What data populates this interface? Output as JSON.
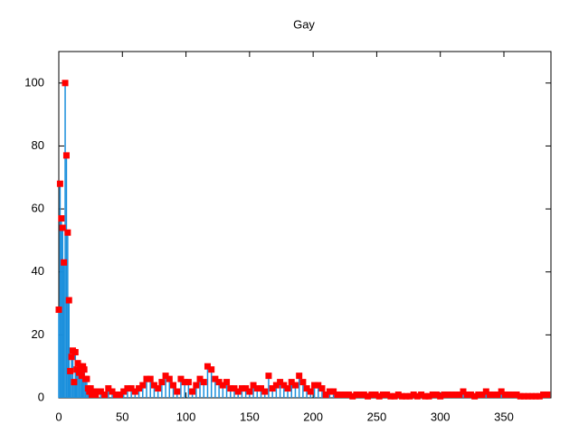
{
  "chart_data": {
    "type": "impulses-points",
    "title": "Gay",
    "x": [
      0,
      1,
      2,
      3,
      4,
      5,
      6,
      7,
      8,
      9,
      10,
      11,
      12,
      13,
      14,
      15,
      16,
      17,
      18,
      19,
      20,
      21,
      22,
      23,
      24,
      25,
      26,
      27,
      28,
      29,
      30,
      33,
      36,
      39,
      42,
      45,
      48,
      51,
      54,
      57,
      60,
      63,
      66,
      69,
      72,
      75,
      78,
      81,
      84,
      87,
      90,
      93,
      96,
      99,
      102,
      105,
      108,
      111,
      114,
      117,
      120,
      123,
      126,
      129,
      132,
      135,
      138,
      141,
      144,
      147,
      150,
      153,
      156,
      159,
      162,
      165,
      168,
      171,
      174,
      177,
      180,
      183,
      186,
      189,
      192,
      195,
      198,
      201,
      204,
      207,
      210,
      213,
      216,
      219,
      222,
      225,
      228,
      231,
      234,
      237,
      240,
      243,
      246,
      249,
      252,
      255,
      258,
      261,
      264,
      267,
      270,
      273,
      276,
      279,
      282,
      285,
      288,
      291,
      294,
      297,
      300,
      303,
      306,
      309,
      312,
      315,
      318,
      321,
      324,
      327,
      330,
      333,
      336,
      339,
      342,
      345,
      348,
      351,
      354,
      357,
      360,
      363,
      366,
      369,
      372,
      375,
      378,
      381,
      384
    ],
    "values": [
      28,
      68,
      57,
      54,
      43,
      100,
      77,
      52.5,
      31,
      8.5,
      13,
      15,
      5,
      14.5,
      9,
      11,
      8,
      10,
      7,
      10,
      9,
      6,
      6,
      3,
      2,
      3,
      1,
      2,
      2,
      1,
      2,
      2,
      1,
      3,
      2,
      1,
      1,
      2,
      3,
      3,
      2,
      3,
      4,
      6,
      6,
      4,
      3,
      5,
      7,
      6,
      4,
      2,
      6,
      5,
      5,
      2,
      4,
      6,
      5,
      10,
      9,
      6,
      5,
      4,
      5,
      3,
      3,
      2,
      3,
      3,
      2,
      4,
      3,
      3,
      2,
      7,
      3,
      4,
      5,
      4,
      3,
      5,
      4,
      7,
      5,
      3,
      2,
      4,
      4,
      3,
      1,
      2,
      2,
      1,
      1,
      1,
      1,
      0.5,
      1,
      1,
      1,
      0.5,
      1,
      1,
      0.5,
      1,
      1,
      0.5,
      0.5,
      1,
      0.5,
      0.5,
      0.5,
      1,
      0.5,
      1,
      0.5,
      0.5,
      1,
      1,
      0.5,
      1,
      1,
      1,
      1,
      1,
      2,
      1,
      1,
      0.5,
      1,
      1,
      2,
      1,
      1,
      1,
      2,
      1,
      1,
      1,
      1,
      0.5,
      0.5,
      0.5,
      0.5,
      0.5,
      0.5,
      1,
      1
    ],
    "impulse_color": "#1a8fdc",
    "point_color": "#ff0000",
    "xlim": [
      0,
      387
    ],
    "ylim": [
      0,
      110
    ],
    "xticks": [
      0,
      50,
      100,
      150,
      200,
      250,
      300,
      350
    ],
    "yticks": [
      0,
      20,
      40,
      60,
      80,
      100
    ]
  }
}
